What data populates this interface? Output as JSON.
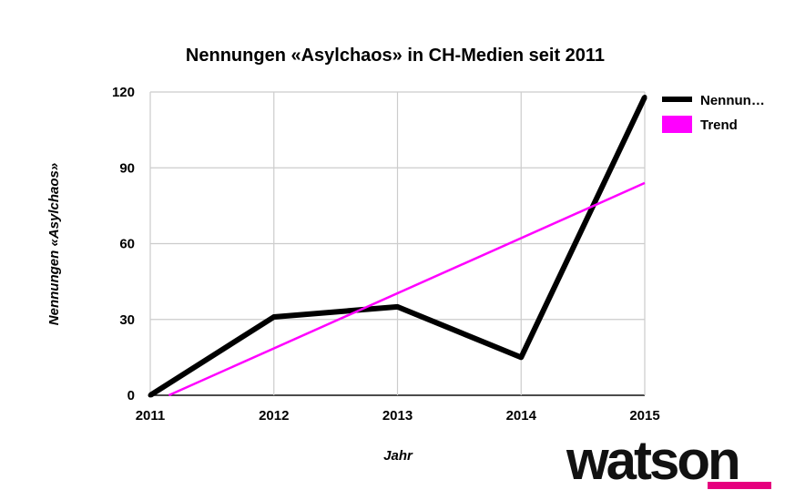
{
  "chart_data": {
    "type": "line",
    "title": "Nennungen «Asylchaos» in CH-Medien seit 2011",
    "xlabel": "Jahr",
    "ylabel": "Nennungen «Asylchaos»",
    "x": [
      2011,
      2012,
      2013,
      2014,
      2015
    ],
    "xlim": [
      2011,
      2015
    ],
    "ylim": [
      0,
      120
    ],
    "y_ticks": [
      0,
      30,
      60,
      90,
      120
    ],
    "x_tick_labels": [
      "2011",
      "2012",
      "2013",
      "2014",
      "2015"
    ],
    "y_tick_labels": [
      "0",
      "30",
      "60",
      "90",
      "120"
    ],
    "grid": true,
    "legend_position": "top-right",
    "series": [
      {
        "name": "Nennun…",
        "color": "#000000",
        "values": [
          0,
          31,
          35,
          15,
          118
        ]
      },
      {
        "name": "Trend",
        "color": "#ff00ff",
        "trend_points": [
          [
            2011.15,
            0
          ],
          [
            2015,
            84
          ]
        ]
      }
    ]
  },
  "logo": {
    "text": "watson",
    "underline_color": "#e6007e"
  }
}
